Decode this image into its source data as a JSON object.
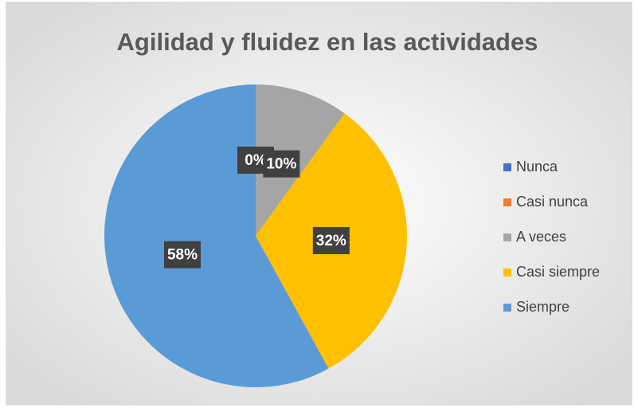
{
  "chart_data": {
    "type": "pie",
    "title": "Agilidad y fluidez en las actividades",
    "categories": [
      "Nunca",
      "Casi nunca",
      "A veces",
      "Casi siempre",
      "Siempre"
    ],
    "values": [
      0,
      0,
      10,
      32,
      58
    ],
    "value_labels": [
      "0%",
      "0%",
      "10%",
      "32%",
      "58%"
    ],
    "colors": [
      "#4472c4",
      "#ed7d31",
      "#a5a5a5",
      "#ffc000",
      "#5b9bd5"
    ],
    "legend": "right"
  }
}
